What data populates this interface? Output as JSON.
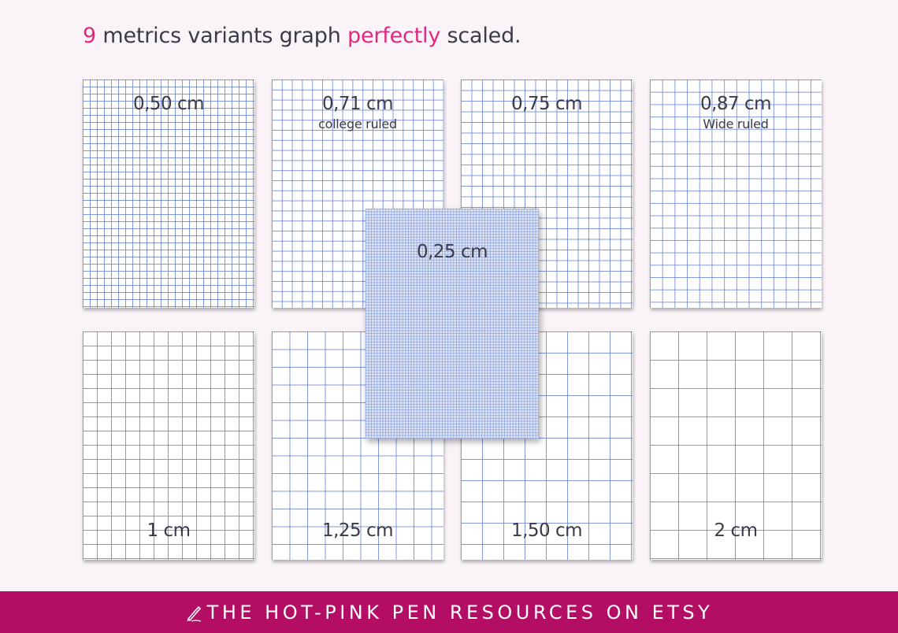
{
  "headline": {
    "prefix": "9",
    "part1": "metrics variants graph",
    "accent": "perfectly",
    "suffix": "scaled."
  },
  "colors": {
    "accent": "#e0287e",
    "footer_bg": "#b30d64",
    "grid_line": "#5f7dd2",
    "background": "#faf4f9"
  },
  "cards": [
    {
      "label": "0,50 cm",
      "sublabel": ""
    },
    {
      "label": "0,71 cm",
      "sublabel": "college ruled"
    },
    {
      "label": "0,75 cm",
      "sublabel": ""
    },
    {
      "label": "0,87 cm",
      "sublabel": "Wide ruled"
    },
    {
      "label": "1 cm",
      "sublabel": ""
    },
    {
      "label": "1,25 cm",
      "sublabel": ""
    },
    {
      "label": "1,50 cm",
      "sublabel": ""
    },
    {
      "label": "2 cm",
      "sublabel": ""
    },
    {
      "label": "0,25 cm",
      "sublabel": ""
    }
  ],
  "footer": {
    "text": "THE HOT-PINK PEN RESOURCES ON ETSY",
    "icon": "pen-icon"
  }
}
